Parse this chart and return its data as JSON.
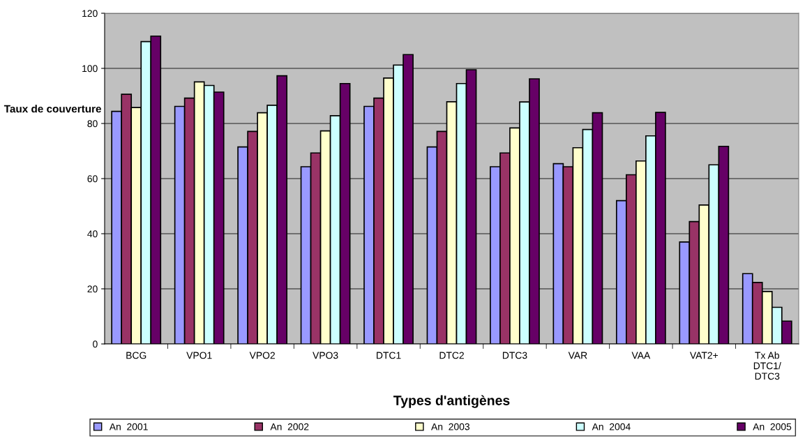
{
  "chart_data": {
    "type": "bar",
    "xlabel": "Types d'antigènes",
    "ylabel": "Taux de couverture",
    "categories": [
      "BCG",
      "VPO1",
      "VPO2",
      "VPO3",
      "DTC1",
      "DTC2",
      "DTC3",
      "VAR",
      "VAA",
      "VAT2+",
      "Tx Ab\nDTC1/\nDTC3"
    ],
    "series": [
      {
        "name": "An  2001",
        "color": "#9999ff",
        "values": [
          84.4,
          86.2,
          71.5,
          64.3,
          86.2,
          71.5,
          64.3,
          65.4,
          52.0,
          37.0,
          25.5
        ]
      },
      {
        "name": "An  2002",
        "color": "#993366",
        "values": [
          90.6,
          89.2,
          77.1,
          69.3,
          89.2,
          77.1,
          69.3,
          64.3,
          61.4,
          44.4,
          22.3
        ]
      },
      {
        "name": "An  2003",
        "color": "#ffffcc",
        "values": [
          85.8,
          95.1,
          83.9,
          77.3,
          96.5,
          87.9,
          78.4,
          71.2,
          66.4,
          50.4,
          19.0
        ]
      },
      {
        "name": "An  2004",
        "color": "#ccffff",
        "values": [
          109.7,
          93.8,
          86.6,
          82.8,
          101.2,
          94.5,
          87.8,
          77.8,
          75.5,
          65.0,
          13.3
        ]
      },
      {
        "name": "An  2005",
        "color": "#660066",
        "values": [
          111.7,
          91.4,
          97.3,
          94.5,
          105.0,
          99.5,
          96.2,
          83.9,
          84.0,
          71.7,
          8.3
        ]
      }
    ],
    "ylim": [
      0,
      120
    ],
    "yticks": [
      0,
      20,
      40,
      60,
      80,
      100,
      120
    ],
    "grid": "y",
    "legend": "bottom"
  }
}
